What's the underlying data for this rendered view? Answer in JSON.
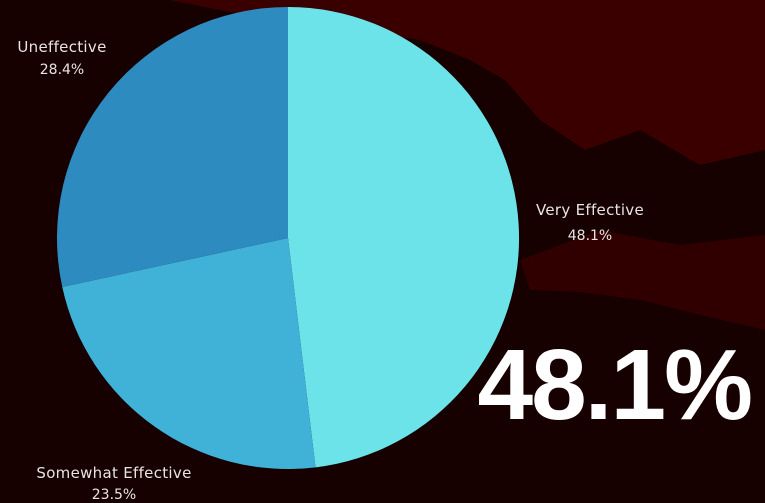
{
  "chart_data": {
    "type": "pie",
    "categories": [
      "Very Effective",
      "Somewhat Effective",
      "Uneffective"
    ],
    "values": [
      48.1,
      23.5,
      28.4
    ],
    "value_labels": [
      "48.1%",
      "23.5%",
      "28.4%"
    ],
    "colors": [
      "#6ce3e9",
      "#41b2d7",
      "#2e8bbf"
    ],
    "start_angle_deg": 0,
    "direction": "clockwise",
    "legend": "none"
  },
  "highlight": {
    "value": "48.1%"
  },
  "colors": {
    "background": "#160000",
    "backdrop_blob": "#3a0000",
    "label_text": "#e9e4e4",
    "highlight_text": "#ffffff"
  }
}
